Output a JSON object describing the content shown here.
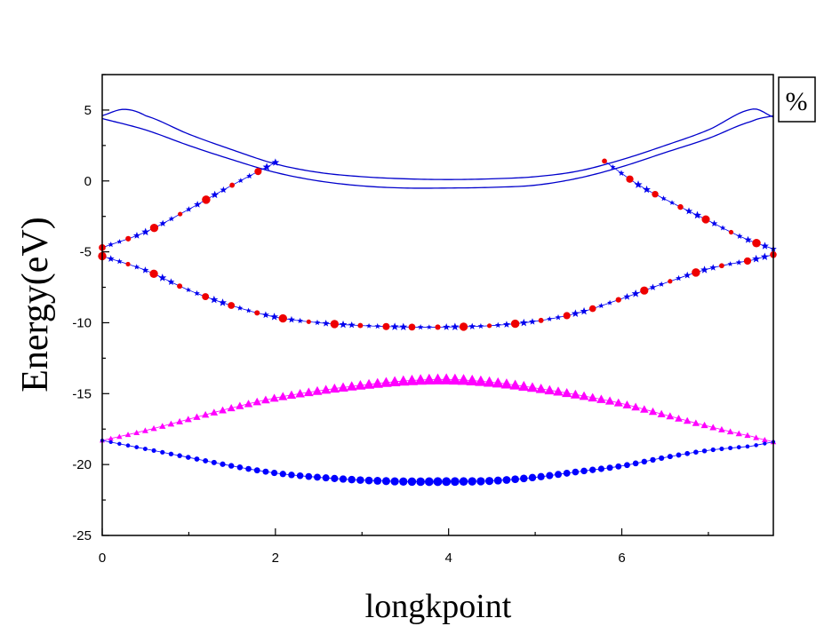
{
  "chart_data": {
    "type": "scatter",
    "title": "",
    "xlabel": "longkpoint",
    "ylabel": "Energy(eV)",
    "xlim": [
      0,
      7.75
    ],
    "ylim": [
      -25,
      7.5
    ],
    "xticks": [
      0,
      2,
      4,
      6
    ],
    "yticks": [
      5,
      0,
      -5,
      -10,
      -15,
      -20,
      -25
    ],
    "legend": {
      "text": "%",
      "position": "top-right"
    },
    "colors": {
      "line_blue": "#0000cc",
      "star_blue": "#0000ee",
      "dot_red": "#ee0000",
      "triangle_magenta": "#ff00ff",
      "dot_blue": "#0000ff",
      "axis": "#000000"
    },
    "series": [
      {
        "style": "line",
        "color": "#0000cc",
        "x": [
          0,
          0.25,
          0.5,
          1.0,
          1.5,
          2.0,
          2.5,
          3.0,
          3.5,
          4.0,
          4.5,
          5.0,
          5.5,
          6.0,
          6.5,
          7.0,
          7.5,
          7.75
        ],
        "y": [
          4.6,
          5.05,
          4.6,
          3.3,
          2.2,
          1.2,
          0.6,
          0.3,
          0.15,
          0.1,
          0.15,
          0.3,
          0.7,
          1.5,
          2.5,
          3.6,
          5.05,
          4.5
        ]
      },
      {
        "style": "line",
        "color": "#0000cc",
        "x": [
          0,
          0.5,
          1.0,
          1.5,
          2.0,
          2.5,
          3.0,
          3.5,
          4.0,
          4.5,
          5.0,
          5.5,
          6.0,
          6.5,
          7.0,
          7.5,
          7.75
        ],
        "y": [
          4.4,
          3.6,
          2.5,
          1.5,
          0.6,
          0.0,
          -0.35,
          -0.5,
          -0.5,
          -0.45,
          -0.3,
          0.2,
          1.0,
          2.0,
          3.0,
          4.2,
          4.6
        ]
      },
      {
        "style": "stars-dots",
        "color": "#0000ee",
        "dot_color": "#ee0000",
        "x": [
          0,
          0.5,
          1.0,
          1.5,
          2.0,
          2.5,
          3.0,
          3.5,
          4.0,
          4.5,
          5.0,
          5.5,
          6.0,
          6.5,
          7.0,
          7.5,
          7.75
        ],
        "y": [
          -5.3,
          -6.3,
          -7.7,
          -8.8,
          -9.6,
          -10.0,
          -10.2,
          -10.3,
          -10.3,
          -10.2,
          -9.9,
          -9.3,
          -8.3,
          -7.2,
          -6.2,
          -5.6,
          -5.2
        ]
      },
      {
        "style": "stars-dots",
        "color": "#0000ee",
        "dot_color": "#ee0000",
        "x": [
          0,
          0.5,
          1.0,
          1.5,
          2.0
        ],
        "y": [
          -4.7,
          -3.6,
          -2.0,
          -0.3,
          1.3
        ]
      },
      {
        "style": "stars-dots",
        "color": "#0000ee",
        "dot_color": "#ee0000",
        "x": [
          5.8,
          6.2,
          6.6,
          7.0,
          7.4,
          7.75
        ],
        "y": [
          1.4,
          -0.3,
          -1.6,
          -2.8,
          -4.0,
          -4.8
        ]
      },
      {
        "style": "triangles",
        "color": "#ff00ff",
        "x": [
          0,
          0.5,
          1.0,
          1.5,
          2.0,
          2.5,
          3.0,
          3.5,
          4.0,
          4.5,
          5.0,
          5.5,
          6.0,
          6.5,
          7.0,
          7.5,
          7.75
        ],
        "y": [
          -18.3,
          -17.6,
          -16.8,
          -16.0,
          -15.3,
          -14.8,
          -14.4,
          -14.1,
          -14.0,
          -14.2,
          -14.6,
          -15.1,
          -15.7,
          -16.5,
          -17.3,
          -18.0,
          -18.4
        ]
      },
      {
        "style": "circles",
        "color": "#0000ff",
        "x": [
          0,
          0.5,
          1.0,
          1.5,
          2.0,
          2.5,
          3.0,
          3.5,
          4.0,
          4.5,
          5.0,
          5.5,
          6.0,
          6.5,
          7.0,
          7.5,
          7.75
        ],
        "y": [
          -18.3,
          -18.9,
          -19.5,
          -20.1,
          -20.6,
          -20.9,
          -21.1,
          -21.2,
          -21.2,
          -21.15,
          -20.9,
          -20.5,
          -20.1,
          -19.5,
          -19.0,
          -18.7,
          -18.4
        ]
      }
    ]
  }
}
